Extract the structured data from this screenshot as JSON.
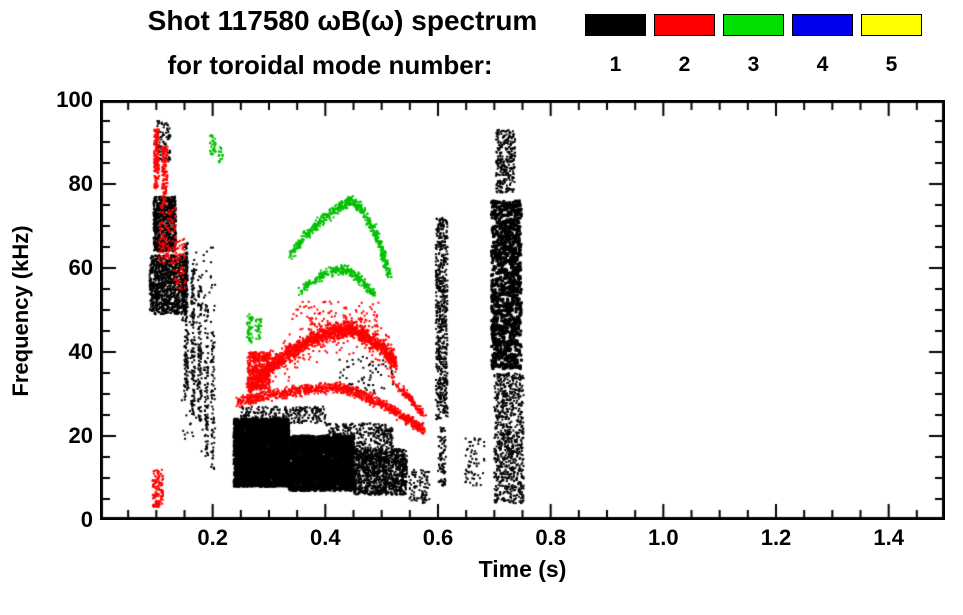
{
  "chart_data": {
    "type": "scatter",
    "title_line1": "Shot 117580 ωB(ω) spectrum",
    "title_line2": "for toroidal mode number:",
    "xlabel": "Time (s)",
    "ylabel": "Frequency (kHz)",
    "xlim": [
      0.0,
      1.5
    ],
    "ylim": [
      0,
      100
    ],
    "x_tick_values": [
      0.2,
      0.4,
      0.6,
      0.8,
      1.0,
      1.2,
      1.4
    ],
    "x_tick_labels": [
      "0.2",
      "0.4",
      "0.6",
      "0.8",
      "1.0",
      "1.2",
      "1.4"
    ],
    "x_minor_step": 0.05,
    "y_tick_values": [
      0,
      20,
      40,
      60,
      80,
      100
    ],
    "y_tick_labels": [
      "0",
      "20",
      "40",
      "60",
      "80",
      "100"
    ],
    "y_minor_step": 5,
    "grid": false,
    "legend": {
      "position": "top-right",
      "entries": [
        {
          "label": "1",
          "color": "#000000"
        },
        {
          "label": "2",
          "color": "#ff0000"
        },
        {
          "label": "3",
          "color": "#00e000"
        },
        {
          "label": "4",
          "color": "#0000ee"
        },
        {
          "label": "5",
          "color": "#ffff00"
        }
      ]
    },
    "series": [
      {
        "name": "toroidal mode n=1",
        "color": "#000000",
        "clusters": [
          {
            "t": "box",
            "b": [
              0.095,
              64,
              0.135,
              77
            ],
            "n": 800
          },
          {
            "t": "box",
            "b": [
              0.088,
              49,
              0.155,
              63
            ],
            "n": 1100
          },
          {
            "t": "box",
            "b": [
              0.1,
              85,
              0.125,
              95
            ],
            "n": 90
          },
          {
            "t": "box",
            "b": [
              0.15,
              28,
              0.156,
              66
            ],
            "n": 140
          },
          {
            "t": "box",
            "b": [
              0.162,
              25,
              0.168,
              62
            ],
            "n": 120
          },
          {
            "t": "box",
            "b": [
              0.174,
              22,
              0.18,
              58
            ],
            "n": 100
          },
          {
            "t": "box",
            "b": [
              0.186,
              15,
              0.192,
              52
            ],
            "n": 90
          },
          {
            "t": "box",
            "b": [
              0.197,
              12,
              0.203,
              45
            ],
            "n": 70
          },
          {
            "t": "box",
            "b": [
              0.145,
              15,
              0.205,
              65
            ],
            "n": 120
          },
          {
            "t": "box",
            "b": [
              0.238,
              8,
              0.335,
              24
            ],
            "n": 3000,
            "s": 3
          },
          {
            "t": "box",
            "b": [
              0.335,
              7,
              0.45,
              20
            ],
            "n": 2200,
            "s": 3
          },
          {
            "t": "box",
            "b": [
              0.45,
              6,
              0.545,
              17
            ],
            "n": 1200
          },
          {
            "t": "box",
            "b": [
              0.25,
              23,
              0.4,
              27
            ],
            "n": 260
          },
          {
            "t": "box",
            "b": [
              0.4,
              17,
              0.52,
              23
            ],
            "n": 350
          },
          {
            "t": "box",
            "b": [
              0.42,
              30,
              0.52,
              39
            ],
            "n": 70
          },
          {
            "t": "box",
            "b": [
              0.596,
              24,
              0.617,
              72
            ],
            "n": 600
          },
          {
            "t": "box",
            "b": [
              0.6,
              8,
              0.614,
              22
            ],
            "n": 90
          },
          {
            "t": "box",
            "b": [
              0.648,
              8,
              0.683,
              20
            ],
            "n": 60
          },
          {
            "t": "box",
            "b": [
              0.695,
              36,
              0.748,
              76
            ],
            "n": 1100,
            "s": 3
          },
          {
            "t": "box",
            "b": [
              0.7,
              4,
              0.752,
              35
            ],
            "n": 800
          },
          {
            "t": "box",
            "b": [
              0.703,
              78,
              0.737,
              93
            ],
            "n": 280
          },
          {
            "t": "box",
            "b": [
              0.548,
              4,
              0.585,
              12
            ],
            "n": 90
          }
        ]
      },
      {
        "name": "toroidal mode n=2",
        "color": "#ff0000",
        "clusters": [
          {
            "t": "box",
            "b": [
              0.096,
              79,
              0.105,
              93
            ],
            "n": 150
          },
          {
            "t": "box",
            "b": [
              0.11,
              75,
              0.12,
              89
            ],
            "n": 120
          },
          {
            "t": "box",
            "b": [
              0.103,
              61,
              0.135,
              75
            ],
            "n": 130
          },
          {
            "t": "box",
            "b": [
              0.132,
              54,
              0.152,
              67
            ],
            "n": 60
          },
          {
            "t": "box",
            "b": [
              0.093,
              3,
              0.112,
              12
            ],
            "n": 120
          },
          {
            "t": "path",
            "p": [
              [
                0.262,
                31
              ],
              [
                0.3,
                36
              ],
              [
                0.335,
                39.5
              ],
              [
                0.37,
                42.5
              ],
              [
                0.405,
                44.5
              ],
              [
                0.44,
                45.5
              ],
              [
                0.47,
                44
              ],
              [
                0.5,
                41
              ],
              [
                0.525,
                37.5
              ]
            ],
            "w": 2.6,
            "n": 1500
          },
          {
            "t": "path",
            "p": [
              [
                0.262,
                31
              ],
              [
                0.3,
                36
              ],
              [
                0.335,
                39.5
              ],
              [
                0.37,
                42.5
              ],
              [
                0.405,
                44.5
              ],
              [
                0.44,
                45.5
              ],
              [
                0.47,
                44
              ],
              [
                0.5,
                41
              ],
              [
                0.525,
                37.5
              ]
            ],
            "w": 7,
            "n": 280
          },
          {
            "t": "path",
            "p": [
              [
                0.243,
                28
              ],
              [
                0.29,
                29.5
              ],
              [
                0.34,
                30.5
              ],
              [
                0.39,
                31.5
              ],
              [
                0.43,
                31.5
              ],
              [
                0.47,
                29.5
              ],
              [
                0.51,
                27
              ],
              [
                0.545,
                24
              ],
              [
                0.575,
                21.5
              ]
            ],
            "w": 1.8,
            "n": 1000
          },
          {
            "t": "box",
            "b": [
              0.262,
              31,
              0.302,
              40
            ],
            "n": 420
          },
          {
            "t": "box",
            "b": [
              0.34,
              46,
              0.5,
              52
            ],
            "n": 90
          },
          {
            "t": "path",
            "p": [
              [
                0.52,
                33
              ],
              [
                0.55,
                29
              ],
              [
                0.575,
                25
              ]
            ],
            "w": 1.5,
            "n": 140
          }
        ]
      },
      {
        "name": "toroidal mode n=3",
        "color": "#00c000",
        "clusters": [
          {
            "t": "path",
            "p": [
              [
                0.335,
                63
              ],
              [
                0.365,
                67.5
              ],
              [
                0.395,
                71.5
              ],
              [
                0.425,
                74.5
              ],
              [
                0.445,
                76
              ],
              [
                0.465,
                74
              ],
              [
                0.485,
                69.5
              ],
              [
                0.5,
                64
              ],
              [
                0.515,
                58
              ]
            ],
            "w": 1.8,
            "n": 550
          },
          {
            "t": "path",
            "p": [
              [
                0.355,
                54.5
              ],
              [
                0.385,
                57.5
              ],
              [
                0.415,
                59.5
              ],
              [
                0.44,
                59.5
              ],
              [
                0.465,
                57
              ],
              [
                0.487,
                53.5
              ]
            ],
            "w": 1.5,
            "n": 300
          },
          {
            "t": "box",
            "b": [
              0.26,
              42,
              0.272,
              49
            ],
            "n": 50
          },
          {
            "t": "box",
            "b": [
              0.276,
              43,
              0.287,
              48
            ],
            "n": 30
          },
          {
            "t": "box",
            "b": [
              0.195,
              87,
              0.206,
              92
            ],
            "n": 35
          },
          {
            "t": "box",
            "b": [
              0.209,
              85,
              0.218,
              89
            ],
            "n": 18
          }
        ]
      },
      {
        "name": "toroidal mode n=4",
        "color": "#0000ee",
        "clusters": []
      },
      {
        "name": "toroidal mode n=5",
        "color": "#ffff00",
        "clusters": []
      }
    ]
  }
}
